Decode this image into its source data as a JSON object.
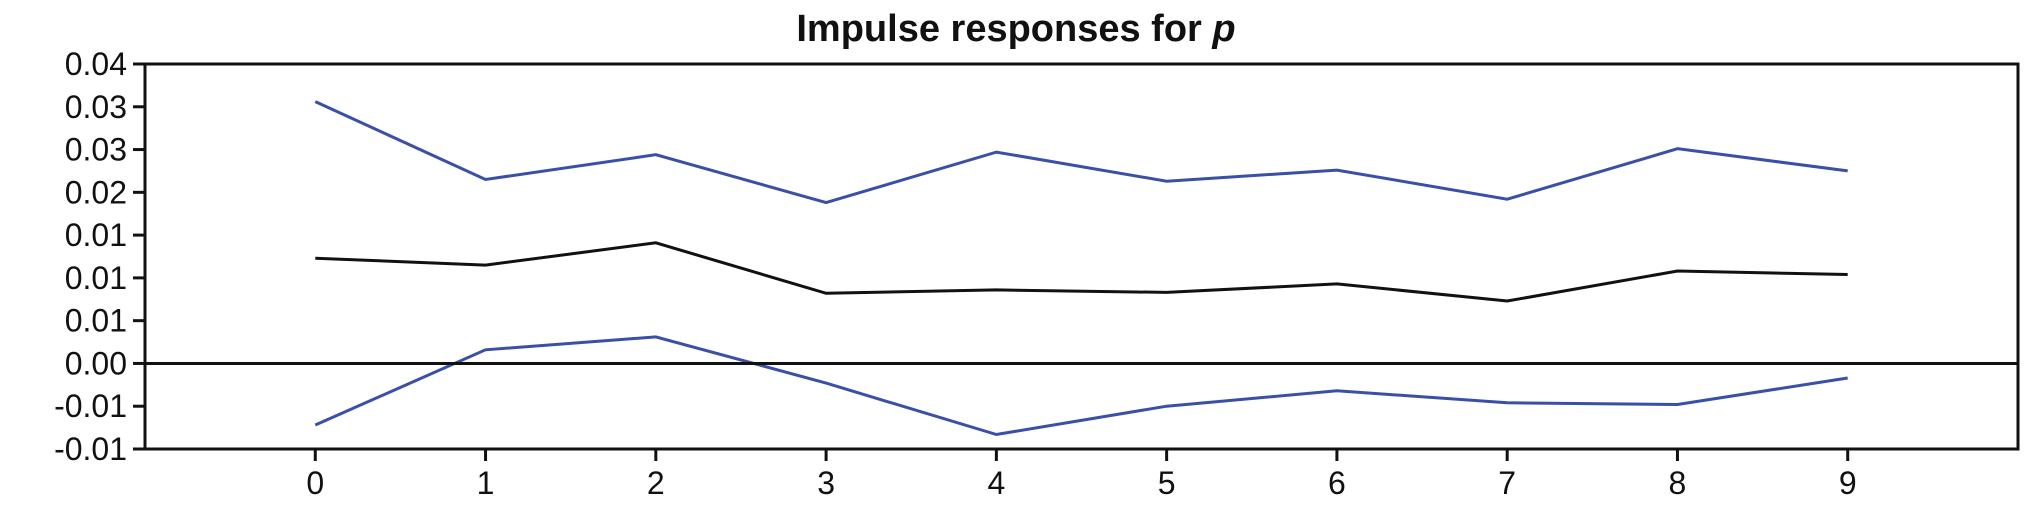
{
  "chart_data": {
    "type": "line",
    "title": "Impulse responses for",
    "title_variable": "p",
    "x": [
      0,
      1,
      2,
      3,
      4,
      5,
      6,
      7,
      8,
      9
    ],
    "xlim": [
      -1,
      10
    ],
    "ylim": [
      -0.01,
      0.035
    ],
    "yticks": [
      -0.01,
      -0.005,
      0.0,
      0.005,
      0.01,
      0.015,
      0.02,
      0.025,
      0.03,
      0.035
    ],
    "ytick_labels": [
      "-0.01",
      "-0.01",
      "0.00",
      "0.01",
      "0.01",
      "0.01",
      "0.02",
      "0.03",
      "0.03",
      "0.04"
    ],
    "xtick_labels": [
      "0",
      "1",
      "2",
      "3",
      "4",
      "5",
      "6",
      "7",
      "8",
      "9"
    ],
    "zero_line": true,
    "grid": false,
    "series": [
      {
        "key": "upper_band",
        "color": "#3a4fa8",
        "values": [
          0.0306,
          0.0215,
          0.0244,
          0.0188,
          0.0247,
          0.0213,
          0.0226,
          0.0192,
          0.0251,
          0.0225
        ]
      },
      {
        "key": "response",
        "color": "#111111",
        "values": [
          0.0123,
          0.0115,
          0.0141,
          0.0082,
          0.0086,
          0.0083,
          0.0093,
          0.0073,
          0.0108,
          0.0104
        ]
      },
      {
        "key": "lower_band",
        "color": "#3a4fa8",
        "values": [
          -0.0072,
          0.0016,
          0.0031,
          -0.0023,
          -0.0083,
          -0.005,
          -0.0032,
          -0.0046,
          -0.0048,
          -0.0017
        ]
      }
    ]
  }
}
